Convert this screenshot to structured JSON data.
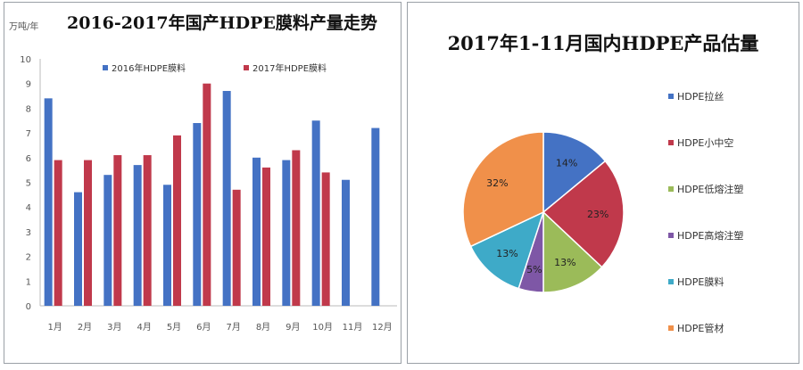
{
  "chart_data": [
    {
      "type": "bar",
      "title": "2016-2017年国产HDPE膜料产量走势",
      "ylabel": "万吨/年",
      "ylim": [
        0,
        10
      ],
      "yticks": [
        "0",
        "1",
        "2",
        "3",
        "4",
        "5",
        "6",
        "7",
        "8",
        "9",
        "10"
      ],
      "categories": [
        "1月",
        "2月",
        "3月",
        "4月",
        "5月",
        "6月",
        "7月",
        "8月",
        "9月",
        "10月",
        "11月",
        "12月"
      ],
      "series": [
        {
          "name": "2016年HDPE膜料",
          "color": "#4472c4",
          "values": [
            8.4,
            4.6,
            5.3,
            5.7,
            4.9,
            7.4,
            8.7,
            6.0,
            5.9,
            7.5,
            5.1,
            7.2
          ]
        },
        {
          "name": "2017年HDPE膜料",
          "color": "#c0394b",
          "values": [
            5.9,
            5.9,
            6.1,
            6.1,
            6.9,
            9.0,
            4.7,
            5.6,
            6.3,
            5.4,
            null,
            null
          ]
        }
      ],
      "legend_position": "top"
    },
    {
      "type": "pie",
      "title": "2017年1-11月国内HDPE产品估量",
      "slices": [
        {
          "name": "HDPE拉丝",
          "value": 14,
          "label": "14%",
          "color": "#4472c4"
        },
        {
          "name": "HDPE小中空",
          "value": 23,
          "label": "23%",
          "color": "#c0394b"
        },
        {
          "name": "HDPE低熔注塑",
          "value": 13,
          "label": "13%",
          "color": "#9bbb59"
        },
        {
          "name": "HDPE高熔注塑",
          "value": 5,
          "label": "5%",
          "color": "#7e57a6"
        },
        {
          "name": "HDPE膜料",
          "value": 13,
          "label": "13%",
          "color": "#3eaac8"
        },
        {
          "name": "HDPE管材",
          "value": 32,
          "label": "32%",
          "color": "#f0904a"
        }
      ],
      "legend_position": "right"
    }
  ]
}
